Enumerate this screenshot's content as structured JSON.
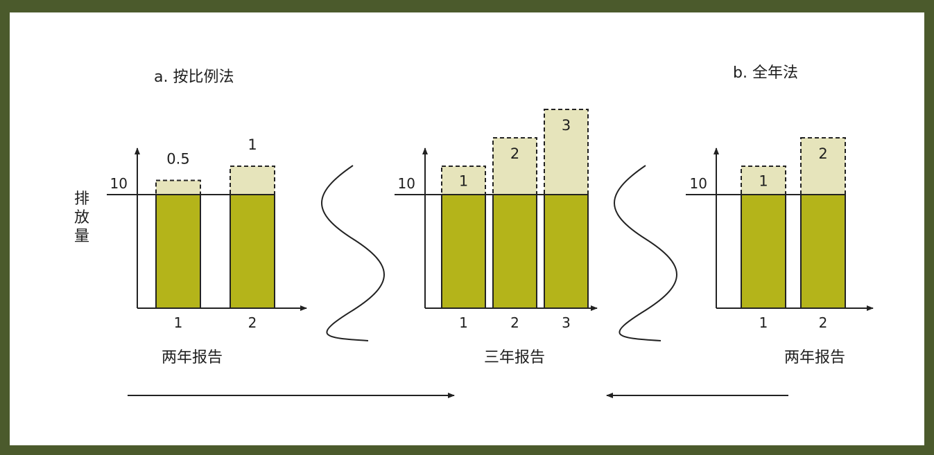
{
  "title_a": "a. 按比例法",
  "title_b": "b. 全年法",
  "y_axis_label_chars": [
    "排",
    "放",
    "量"
  ],
  "colors": {
    "frame": "#4b5a2c",
    "base_fill": "#b4b41a",
    "extra_fill": "#e6e4bb",
    "stroke": "#222222"
  },
  "charts": [
    {
      "baseline_label": "10",
      "bars": [
        {
          "tick": "1",
          "extra_label": "0.5",
          "extra": 0.5
        },
        {
          "tick": "2",
          "extra_label": "1",
          "extra": 1
        }
      ],
      "caption": "两年报告"
    },
    {
      "baseline_label": "10",
      "bars": [
        {
          "tick": "1",
          "extra_label": "1",
          "extra": 1
        },
        {
          "tick": "2",
          "extra_label": "2",
          "extra": 2
        },
        {
          "tick": "3",
          "extra_label": "3",
          "extra": 3
        }
      ],
      "caption": "三年报告"
    },
    {
      "baseline_label": "10",
      "bars": [
        {
          "tick": "1",
          "extra_label": "1",
          "extra": 1
        },
        {
          "tick": "2",
          "extra_label": "2",
          "extra": 2
        }
      ],
      "caption": "两年报告"
    }
  ]
}
